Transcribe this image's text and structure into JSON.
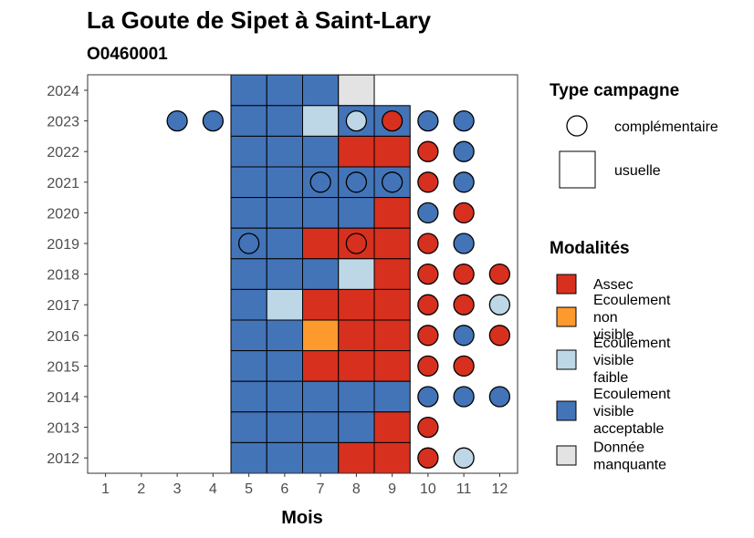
{
  "chart_data": {
    "type": "heatmap",
    "title": "La Goute de Sipet à Saint-Lary",
    "subtitle": "O0460001",
    "xlabel": "Mois",
    "ylabel": "",
    "x_categories": [
      "1",
      "2",
      "3",
      "4",
      "5",
      "6",
      "7",
      "8",
      "9",
      "10",
      "11",
      "12"
    ],
    "y_categories": [
      "2012",
      "2013",
      "2014",
      "2015",
      "2016",
      "2017",
      "2018",
      "2019",
      "2020",
      "2021",
      "2022",
      "2023",
      "2024"
    ],
    "modalites": [
      {
        "key": "assec",
        "label": "Assec",
        "color": "#d7301f"
      },
      {
        "key": "ecoulement_non_visible",
        "label": "Ecoulement non visible",
        "color": "#fd9a2e"
      },
      {
        "key": "ecoulement_visible_faible",
        "label": "Ecoulement visible faible",
        "color": "#bdd7e7"
      },
      {
        "key": "ecoulement_visible_acceptable",
        "label": "Ecoulement visible acceptable",
        "color": "#4374b8"
      },
      {
        "key": "donnee_manquante",
        "label": "Donnée manquante",
        "color": "#e3e3e3"
      }
    ],
    "campaign_types": [
      {
        "key": "complementaire",
        "label": "complémentaire",
        "shape": "circle"
      },
      {
        "key": "usuelle",
        "label": "usuelle",
        "shape": "square"
      }
    ],
    "usuelle": [
      {
        "year": "2024",
        "month": 5,
        "modalite": "ecoulement_visible_acceptable"
      },
      {
        "year": "2024",
        "month": 6,
        "modalite": "ecoulement_visible_acceptable"
      },
      {
        "year": "2024",
        "month": 7,
        "modalite": "ecoulement_visible_acceptable"
      },
      {
        "year": "2024",
        "month": 8,
        "modalite": "donnee_manquante"
      },
      {
        "year": "2023",
        "month": 5,
        "modalite": "ecoulement_visible_acceptable"
      },
      {
        "year": "2023",
        "month": 6,
        "modalite": "ecoulement_visible_acceptable"
      },
      {
        "year": "2023",
        "month": 7,
        "modalite": "ecoulement_visible_faible"
      },
      {
        "year": "2023",
        "month": 8,
        "modalite": "ecoulement_visible_acceptable"
      },
      {
        "year": "2023",
        "month": 9,
        "modalite": "ecoulement_visible_acceptable"
      },
      {
        "year": "2022",
        "month": 5,
        "modalite": "ecoulement_visible_acceptable"
      },
      {
        "year": "2022",
        "month": 6,
        "modalite": "ecoulement_visible_acceptable"
      },
      {
        "year": "2022",
        "month": 7,
        "modalite": "ecoulement_visible_acceptable"
      },
      {
        "year": "2022",
        "month": 8,
        "modalite": "assec"
      },
      {
        "year": "2022",
        "month": 9,
        "modalite": "assec"
      },
      {
        "year": "2021",
        "month": 5,
        "modalite": "ecoulement_visible_acceptable"
      },
      {
        "year": "2021",
        "month": 6,
        "modalite": "ecoulement_visible_acceptable"
      },
      {
        "year": "2021",
        "month": 7,
        "modalite": "ecoulement_visible_acceptable"
      },
      {
        "year": "2021",
        "month": 8,
        "modalite": "ecoulement_visible_acceptable"
      },
      {
        "year": "2021",
        "month": 9,
        "modalite": "ecoulement_visible_acceptable"
      },
      {
        "year": "2020",
        "month": 5,
        "modalite": "ecoulement_visible_acceptable"
      },
      {
        "year": "2020",
        "month": 6,
        "modalite": "ecoulement_visible_acceptable"
      },
      {
        "year": "2020",
        "month": 7,
        "modalite": "ecoulement_visible_acceptable"
      },
      {
        "year": "2020",
        "month": 8,
        "modalite": "ecoulement_visible_acceptable"
      },
      {
        "year": "2020",
        "month": 9,
        "modalite": "assec"
      },
      {
        "year": "2019",
        "month": 5,
        "modalite": "ecoulement_visible_acceptable"
      },
      {
        "year": "2019",
        "month": 6,
        "modalite": "ecoulement_visible_acceptable"
      },
      {
        "year": "2019",
        "month": 7,
        "modalite": "assec"
      },
      {
        "year": "2019",
        "month": 8,
        "modalite": "assec"
      },
      {
        "year": "2019",
        "month": 9,
        "modalite": "assec"
      },
      {
        "year": "2018",
        "month": 5,
        "modalite": "ecoulement_visible_acceptable"
      },
      {
        "year": "2018",
        "month": 6,
        "modalite": "ecoulement_visible_acceptable"
      },
      {
        "year": "2018",
        "month": 7,
        "modalite": "ecoulement_visible_acceptable"
      },
      {
        "year": "2018",
        "month": 8,
        "modalite": "ecoulement_visible_faible"
      },
      {
        "year": "2018",
        "month": 9,
        "modalite": "assec"
      },
      {
        "year": "2017",
        "month": 5,
        "modalite": "ecoulement_visible_acceptable"
      },
      {
        "year": "2017",
        "month": 6,
        "modalite": "ecoulement_visible_faible"
      },
      {
        "year": "2017",
        "month": 7,
        "modalite": "assec"
      },
      {
        "year": "2017",
        "month": 8,
        "modalite": "assec"
      },
      {
        "year": "2017",
        "month": 9,
        "modalite": "assec"
      },
      {
        "year": "2016",
        "month": 5,
        "modalite": "ecoulement_visible_acceptable"
      },
      {
        "year": "2016",
        "month": 6,
        "modalite": "ecoulement_visible_acceptable"
      },
      {
        "year": "2016",
        "month": 7,
        "modalite": "ecoulement_non_visible"
      },
      {
        "year": "2016",
        "month": 8,
        "modalite": "assec"
      },
      {
        "year": "2016",
        "month": 9,
        "modalite": "assec"
      },
      {
        "year": "2015",
        "month": 5,
        "modalite": "ecoulement_visible_acceptable"
      },
      {
        "year": "2015",
        "month": 6,
        "modalite": "ecoulement_visible_acceptable"
      },
      {
        "year": "2015",
        "month": 7,
        "modalite": "assec"
      },
      {
        "year": "2015",
        "month": 8,
        "modalite": "assec"
      },
      {
        "year": "2015",
        "month": 9,
        "modalite": "assec"
      },
      {
        "year": "2014",
        "month": 5,
        "modalite": "ecoulement_visible_acceptable"
      },
      {
        "year": "2014",
        "month": 6,
        "modalite": "ecoulement_visible_acceptable"
      },
      {
        "year": "2014",
        "month": 7,
        "modalite": "ecoulement_visible_acceptable"
      },
      {
        "year": "2014",
        "month": 8,
        "modalite": "ecoulement_visible_acceptable"
      },
      {
        "year": "2014",
        "month": 9,
        "modalite": "ecoulement_visible_acceptable"
      },
      {
        "year": "2013",
        "month": 5,
        "modalite": "ecoulement_visible_acceptable"
      },
      {
        "year": "2013",
        "month": 6,
        "modalite": "ecoulement_visible_acceptable"
      },
      {
        "year": "2013",
        "month": 7,
        "modalite": "ecoulement_visible_acceptable"
      },
      {
        "year": "2013",
        "month": 8,
        "modalite": "ecoulement_visible_acceptable"
      },
      {
        "year": "2013",
        "month": 9,
        "modalite": "assec"
      },
      {
        "year": "2012",
        "month": 5,
        "modalite": "ecoulement_visible_acceptable"
      },
      {
        "year": "2012",
        "month": 6,
        "modalite": "ecoulement_visible_acceptable"
      },
      {
        "year": "2012",
        "month": 7,
        "modalite": "ecoulement_visible_acceptable"
      },
      {
        "year": "2012",
        "month": 8,
        "modalite": "assec"
      },
      {
        "year": "2012",
        "month": 9,
        "modalite": "assec"
      }
    ],
    "complementaire": [
      {
        "year": "2023",
        "month": 3,
        "modalite": "ecoulement_visible_acceptable"
      },
      {
        "year": "2023",
        "month": 4,
        "modalite": "ecoulement_visible_acceptable"
      },
      {
        "year": "2023",
        "month": 8,
        "modalite": "ecoulement_visible_faible"
      },
      {
        "year": "2023",
        "month": 9,
        "modalite": "assec"
      },
      {
        "year": "2023",
        "month": 10,
        "modalite": "ecoulement_visible_acceptable"
      },
      {
        "year": "2023",
        "month": 11,
        "modalite": "ecoulement_visible_acceptable"
      },
      {
        "year": "2022",
        "month": 10,
        "modalite": "assec"
      },
      {
        "year": "2022",
        "month": 11,
        "modalite": "ecoulement_visible_acceptable"
      },
      {
        "year": "2021",
        "month": 7,
        "modalite": "ecoulement_visible_acceptable"
      },
      {
        "year": "2021",
        "month": 8,
        "modalite": "ecoulement_visible_acceptable"
      },
      {
        "year": "2021",
        "month": 9,
        "modalite": "ecoulement_visible_acceptable"
      },
      {
        "year": "2021",
        "month": 10,
        "modalite": "assec"
      },
      {
        "year": "2021",
        "month": 11,
        "modalite": "ecoulement_visible_acceptable"
      },
      {
        "year": "2020",
        "month": 10,
        "modalite": "ecoulement_visible_acceptable"
      },
      {
        "year": "2020",
        "month": 11,
        "modalite": "assec"
      },
      {
        "year": "2019",
        "month": 5,
        "modalite": "ecoulement_visible_acceptable"
      },
      {
        "year": "2019",
        "month": 8,
        "modalite": "assec"
      },
      {
        "year": "2019",
        "month": 10,
        "modalite": "assec"
      },
      {
        "year": "2019",
        "month": 11,
        "modalite": "ecoulement_visible_acceptable"
      },
      {
        "year": "2018",
        "month": 10,
        "modalite": "assec"
      },
      {
        "year": "2018",
        "month": 11,
        "modalite": "assec"
      },
      {
        "year": "2018",
        "month": 12,
        "modalite": "assec"
      },
      {
        "year": "2017",
        "month": 10,
        "modalite": "assec"
      },
      {
        "year": "2017",
        "month": 11,
        "modalite": "assec"
      },
      {
        "year": "2017",
        "month": 12,
        "modalite": "ecoulement_visible_faible"
      },
      {
        "year": "2016",
        "month": 10,
        "modalite": "assec"
      },
      {
        "year": "2016",
        "month": 11,
        "modalite": "ecoulement_visible_acceptable"
      },
      {
        "year": "2016",
        "month": 12,
        "modalite": "assec"
      },
      {
        "year": "2015",
        "month": 10,
        "modalite": "assec"
      },
      {
        "year": "2015",
        "month": 11,
        "modalite": "assec"
      },
      {
        "year": "2014",
        "month": 10,
        "modalite": "ecoulement_visible_acceptable"
      },
      {
        "year": "2014",
        "month": 11,
        "modalite": "ecoulement_visible_acceptable"
      },
      {
        "year": "2014",
        "month": 12,
        "modalite": "ecoulement_visible_acceptable"
      },
      {
        "year": "2013",
        "month": 10,
        "modalite": "assec"
      },
      {
        "year": "2012",
        "month": 10,
        "modalite": "assec"
      },
      {
        "year": "2012",
        "month": 11,
        "modalite": "ecoulement_visible_faible"
      }
    ],
    "legend": {
      "campaign_title": "Type campagne",
      "modalite_title": "Modalités",
      "placement": "right"
    },
    "grid": false
  }
}
